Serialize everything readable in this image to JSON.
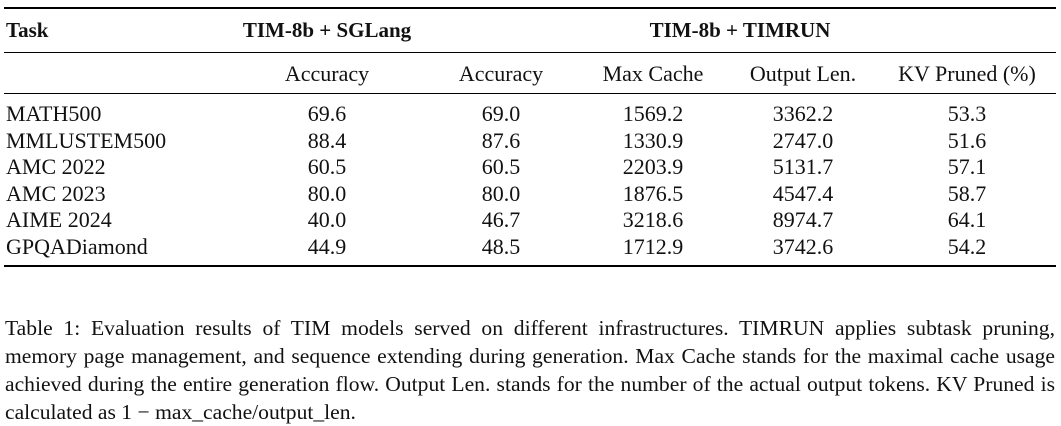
{
  "table": {
    "header_task": "Task",
    "group_sglang": "TIM-8b + SGLang",
    "group_timrun": "TIM-8b + TIMRUN",
    "sub_headers": [
      "Accuracy",
      "Accuracy",
      "Max Cache",
      "Output Len.",
      "KV Pruned (%)"
    ],
    "rows": [
      [
        "MATH500",
        "69.6",
        "69.0",
        "1569.2",
        "3362.2",
        "53.3"
      ],
      [
        "MMLUSTEM500",
        "88.4",
        "87.6",
        "1330.9",
        "2747.0",
        "51.6"
      ],
      [
        "AMC 2022",
        "60.5",
        "60.5",
        "2203.9",
        "5131.7",
        "57.1"
      ],
      [
        "AMC 2023",
        "80.0",
        "80.0",
        "1876.5",
        "4547.4",
        "58.7"
      ],
      [
        "AIME 2024",
        "40.0",
        "46.7",
        "3218.6",
        "8974.7",
        "64.1"
      ],
      [
        "GPQADiamond",
        "44.9",
        "48.5",
        "1712.9",
        "3742.6",
        "54.2"
      ]
    ]
  },
  "caption": "Table 1: Evaluation results of TIM models served on different infrastructures. TIMRUN applies subtask pruning, memory page management, and sequence extending during generation. Max Cache stands for the maximal cache usage achieved during the entire generation flow. Output Len. stands for the number of the actual output tokens. KV Pruned is calculated as 1 − max_cache/output_len."
}
